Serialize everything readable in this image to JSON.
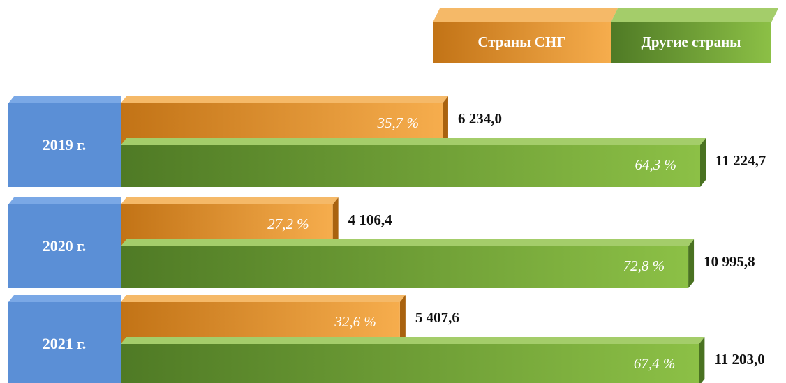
{
  "chart_data": {
    "type": "bar",
    "orientation": "horizontal",
    "categories": [
      "2019 г.",
      "2020 г.",
      "2021 г."
    ],
    "series": [
      {
        "name": "Страны СНГ",
        "color": "#e8962e",
        "values": [
          6234.0,
          4106.4,
          5407.6
        ],
        "value_labels": [
          "6 234,0",
          "4 106,4",
          "5 407,6"
        ],
        "shares": [
          35.7,
          27.2,
          32.6
        ],
        "share_labels": [
          "35,7 %",
          "27,2 %",
          "32,6 %"
        ]
      },
      {
        "name": "Другие страны",
        "color": "#6e9e35",
        "values": [
          11224.7,
          10995.8,
          11203.0
        ],
        "value_labels": [
          "11 224,7",
          "10 995,8",
          "11 203,0"
        ],
        "shares": [
          64.3,
          72.8,
          67.4
        ],
        "share_labels": [
          "64,3 %",
          "72,8 %",
          "67,4 %"
        ]
      }
    ],
    "category_color": "#5b8fd6"
  }
}
